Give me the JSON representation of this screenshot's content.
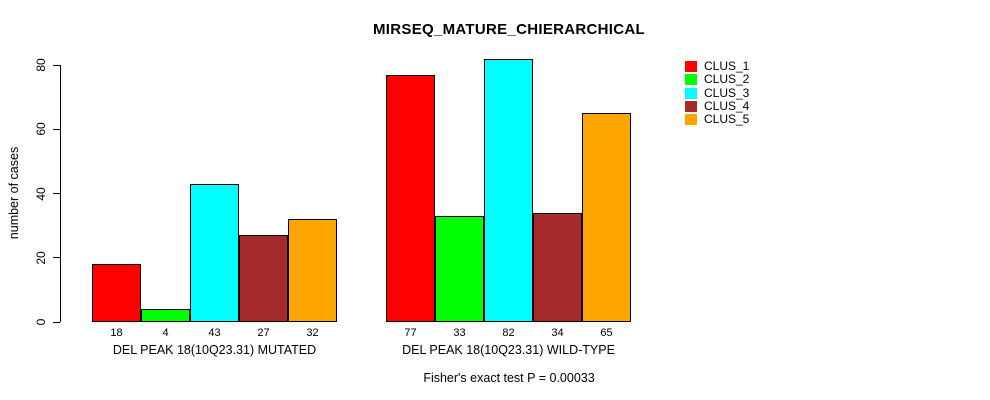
{
  "chart_data": {
    "type": "bar",
    "title": "MIRSEQ_MATURE_CHIERARCHICAL",
    "ylabel": "number of cases",
    "xlabel": "",
    "ylim": [
      0,
      80
    ],
    "yticks": [
      0,
      20,
      40,
      60,
      80
    ],
    "grid": false,
    "legend_position": "top-right",
    "bar_border_color": "#000000",
    "categories": [
      "DEL PEAK 18(10Q23.31) MUTATED",
      "DEL PEAK 18(10Q23.31) WILD-TYPE"
    ],
    "series": [
      {
        "name": "CLUS_1",
        "color": "#FF0000",
        "values": [
          18,
          77
        ]
      },
      {
        "name": "CLUS_2",
        "color": "#00FF00",
        "values": [
          4,
          33
        ]
      },
      {
        "name": "CLUS_3",
        "color": "#00FFFF",
        "values": [
          43,
          82
        ]
      },
      {
        "name": "CLUS_4",
        "color": "#A52A2A",
        "values": [
          27,
          34
        ]
      },
      {
        "name": "CLUS_5",
        "color": "#FFA500",
        "values": [
          32,
          65
        ]
      }
    ],
    "bar_value_labels": true,
    "caption": "Fisher's exact test P = 0.00033"
  }
}
